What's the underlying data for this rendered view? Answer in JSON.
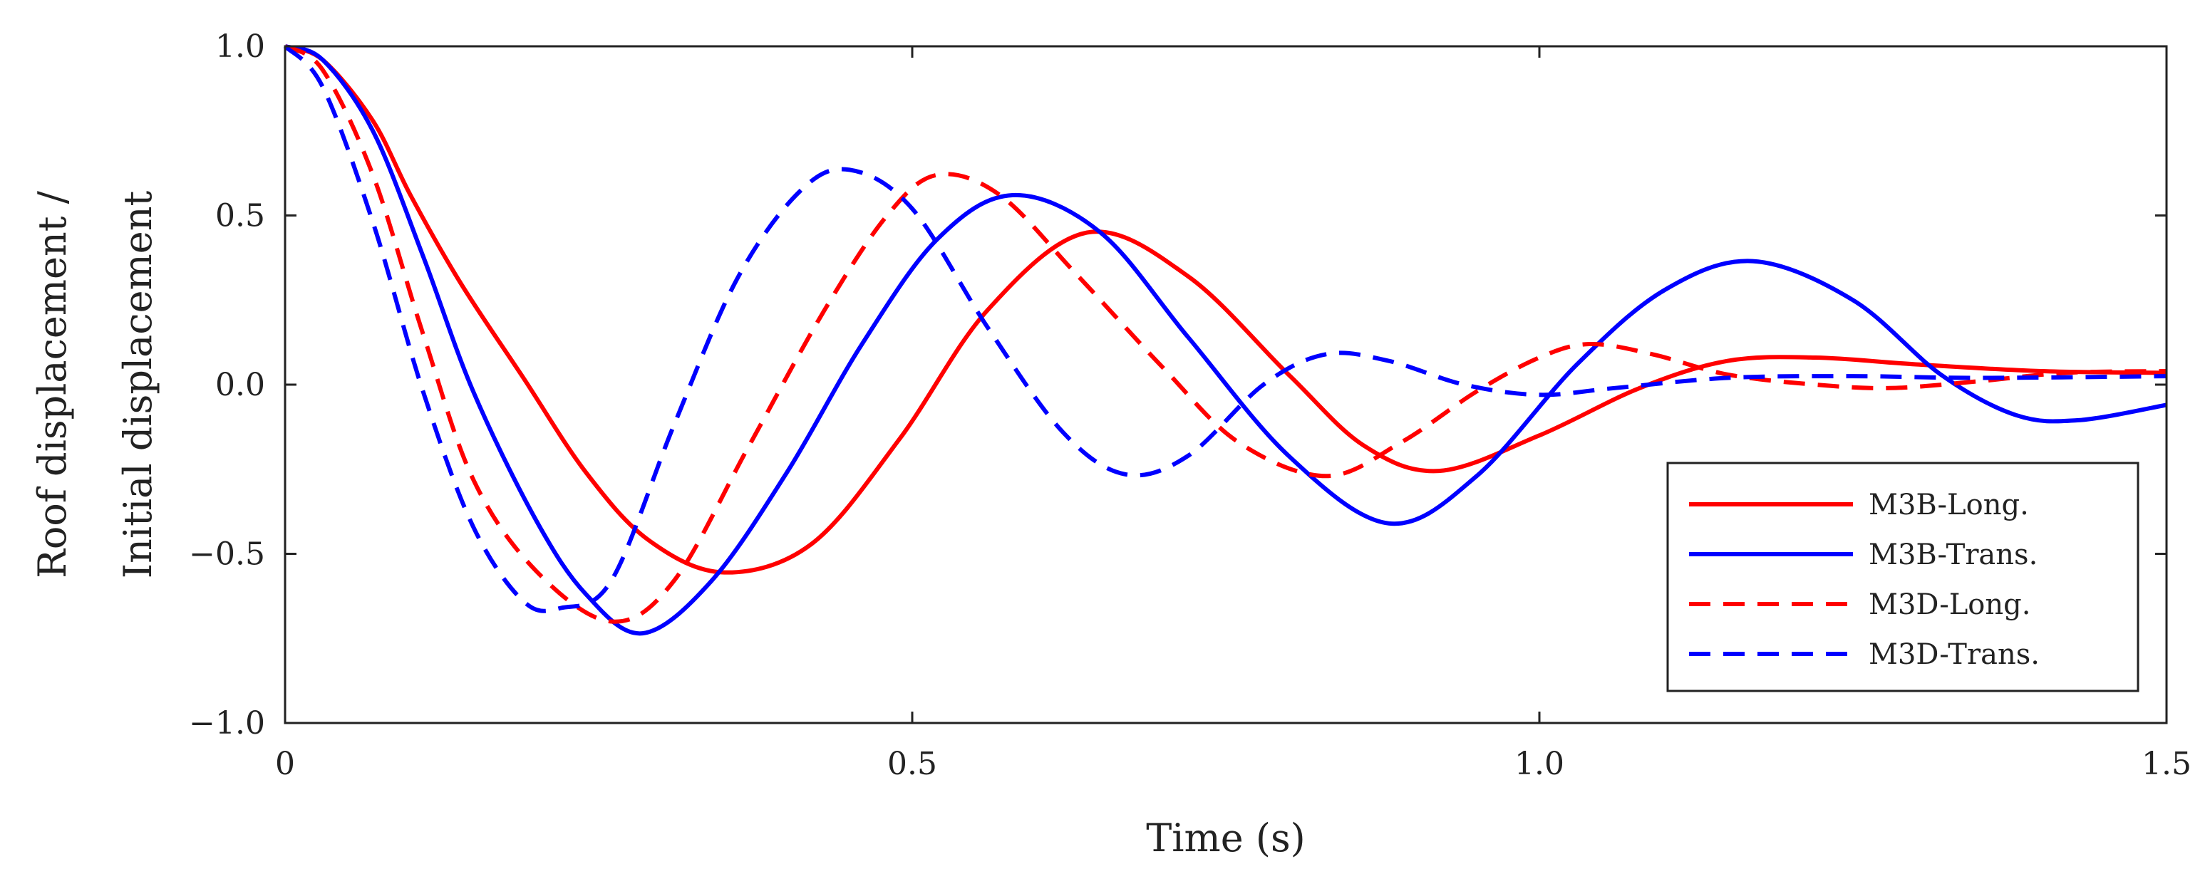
{
  "chart_data": {
    "type": "line",
    "title": "",
    "xlabel": "Time (s)",
    "ylabel_lines": [
      "Roof displacement /",
      "Initial displacement"
    ],
    "xlim": [
      0,
      1.5
    ],
    "ylim": [
      -1.0,
      1.0
    ],
    "grid": false,
    "legend_position": "lower-right",
    "x_ticks": [
      {
        "value": 0,
        "label": "0"
      },
      {
        "value": 0.5,
        "label": "0.5"
      },
      {
        "value": 1.0,
        "label": "1.0"
      },
      {
        "value": 1.5,
        "label": "1.5"
      }
    ],
    "y_ticks": [
      {
        "value": 1.0,
        "label": "1.0"
      },
      {
        "value": 0.5,
        "label": "0.5"
      },
      {
        "value": 0.0,
        "label": "0.0"
      },
      {
        "value": -0.5,
        "label": "−0.5"
      },
      {
        "value": -1.0,
        "label": "−1.0"
      }
    ],
    "series": [
      {
        "name": "M3B-Long.",
        "color": "#ff0000",
        "dash": "solid",
        "points": [
          [
            0,
            1.0
          ],
          [
            0.03,
            0.96
          ],
          [
            0.07,
            0.78
          ],
          [
            0.1,
            0.56
          ],
          [
            0.14,
            0.3
          ],
          [
            0.19,
            0.02
          ],
          [
            0.24,
            -0.26
          ],
          [
            0.29,
            -0.46
          ],
          [
            0.35,
            -0.555
          ],
          [
            0.42,
            -0.47
          ],
          [
            0.49,
            -0.16
          ],
          [
            0.56,
            0.22
          ],
          [
            0.64,
            0.45
          ],
          [
            0.72,
            0.32
          ],
          [
            0.8,
            0.03
          ],
          [
            0.86,
            -0.18
          ],
          [
            0.92,
            -0.255
          ],
          [
            1.0,
            -0.15
          ],
          [
            1.08,
            -0.01
          ],
          [
            1.15,
            0.07
          ],
          [
            1.22,
            0.08
          ],
          [
            1.3,
            0.06
          ],
          [
            1.4,
            0.04
          ],
          [
            1.5,
            0.035
          ]
        ]
      },
      {
        "name": "M3B-Trans.",
        "color": "#0000ff",
        "dash": "solid",
        "points": [
          [
            0,
            1.0
          ],
          [
            0.03,
            0.96
          ],
          [
            0.07,
            0.75
          ],
          [
            0.11,
            0.38
          ],
          [
            0.15,
            -0.02
          ],
          [
            0.2,
            -0.4
          ],
          [
            0.24,
            -0.62
          ],
          [
            0.285,
            -0.735
          ],
          [
            0.34,
            -0.58
          ],
          [
            0.4,
            -0.26
          ],
          [
            0.46,
            0.12
          ],
          [
            0.52,
            0.43
          ],
          [
            0.58,
            0.56
          ],
          [
            0.65,
            0.45
          ],
          [
            0.72,
            0.14
          ],
          [
            0.8,
            -0.21
          ],
          [
            0.88,
            -0.41
          ],
          [
            0.95,
            -0.27
          ],
          [
            1.03,
            0.06
          ],
          [
            1.1,
            0.28
          ],
          [
            1.17,
            0.365
          ],
          [
            1.25,
            0.25
          ],
          [
            1.32,
            0.03
          ],
          [
            1.38,
            -0.09
          ],
          [
            1.43,
            -0.105
          ],
          [
            1.5,
            -0.06
          ]
        ]
      },
      {
        "name": "M3D-Long.",
        "color": "#ff0000",
        "dash": "dashed",
        "points": [
          [
            0,
            1.0
          ],
          [
            0.03,
            0.93
          ],
          [
            0.07,
            0.62
          ],
          [
            0.11,
            0.15
          ],
          [
            0.15,
            -0.28
          ],
          [
            0.2,
            -0.55
          ],
          [
            0.26,
            -0.7
          ],
          [
            0.31,
            -0.58
          ],
          [
            0.37,
            -0.18
          ],
          [
            0.43,
            0.22
          ],
          [
            0.48,
            0.5
          ],
          [
            0.52,
            0.62
          ],
          [
            0.57,
            0.56
          ],
          [
            0.63,
            0.33
          ],
          [
            0.7,
            0.05
          ],
          [
            0.76,
            -0.17
          ],
          [
            0.83,
            -0.27
          ],
          [
            0.89,
            -0.17
          ],
          [
            0.95,
            -0.02
          ],
          [
            1.0,
            0.08
          ],
          [
            1.04,
            0.12
          ],
          [
            1.09,
            0.09
          ],
          [
            1.15,
            0.03
          ],
          [
            1.22,
            0.0
          ],
          [
            1.28,
            -0.01
          ],
          [
            1.35,
            0.01
          ],
          [
            1.42,
            0.035
          ],
          [
            1.5,
            0.04
          ]
        ]
      },
      {
        "name": "M3D-Trans.",
        "color": "#0000ff",
        "dash": "dashed",
        "points": [
          [
            0,
            1.0
          ],
          [
            0.03,
            0.88
          ],
          [
            0.07,
            0.48
          ],
          [
            0.11,
            -0.02
          ],
          [
            0.15,
            -0.42
          ],
          [
            0.19,
            -0.64
          ],
          [
            0.22,
            -0.66
          ],
          [
            0.26,
            -0.58
          ],
          [
            0.31,
            -0.12
          ],
          [
            0.36,
            0.31
          ],
          [
            0.41,
            0.57
          ],
          [
            0.45,
            0.635
          ],
          [
            0.5,
            0.52
          ],
          [
            0.56,
            0.17
          ],
          [
            0.62,
            -0.14
          ],
          [
            0.67,
            -0.265
          ],
          [
            0.72,
            -0.21
          ],
          [
            0.78,
            0.0
          ],
          [
            0.83,
            0.09
          ],
          [
            0.88,
            0.07
          ],
          [
            0.94,
            0.0
          ],
          [
            1.0,
            -0.03
          ],
          [
            1.06,
            -0.01
          ],
          [
            1.15,
            0.02
          ],
          [
            1.25,
            0.025
          ],
          [
            1.35,
            0.02
          ],
          [
            1.5,
            0.025
          ]
        ]
      }
    ]
  }
}
